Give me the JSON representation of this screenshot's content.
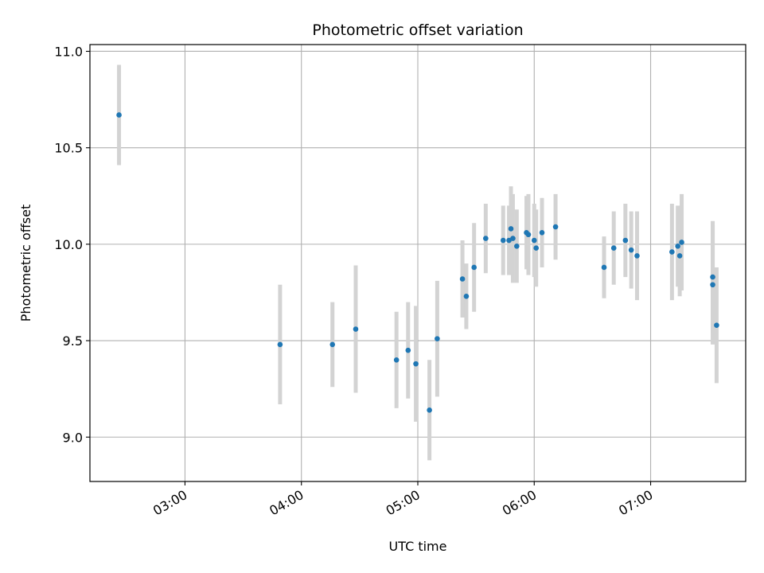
{
  "chart_data": {
    "type": "scatter",
    "title": "Photometric offset variation",
    "xlabel": "UTC time",
    "ylabel": "Photometric offset",
    "x_unit": "UTC time (HH:MM)",
    "xlim": [
      "02:11",
      "07:49"
    ],
    "ylim": [
      8.77,
      11.035
    ],
    "x_ticks": [
      "03:00",
      "04:00",
      "05:00",
      "06:00",
      "07:00"
    ],
    "y_ticks": [
      9.0,
      9.5,
      10.0,
      10.5,
      11.0
    ],
    "y_tick_labels": [
      "9.0",
      "9.5",
      "10.0",
      "10.5",
      "11.0"
    ],
    "grid": true,
    "legend": "none",
    "series": [
      {
        "marker_color": "#1f77b4",
        "errorbar_color": "#d3d3d3",
        "points": [
          {
            "x": "02:26",
            "y": 10.67,
            "err": 0.26
          },
          {
            "x": "03:49",
            "y": 9.48,
            "err": 0.31
          },
          {
            "x": "04:16",
            "y": 9.48,
            "err": 0.22
          },
          {
            "x": "04:28",
            "y": 9.56,
            "err": 0.33
          },
          {
            "x": "04:49",
            "y": 9.4,
            "err": 0.25
          },
          {
            "x": "04:55",
            "y": 9.45,
            "err": 0.25
          },
          {
            "x": "04:59",
            "y": 9.38,
            "err": 0.3
          },
          {
            "x": "05:06",
            "y": 9.14,
            "err": 0.26
          },
          {
            "x": "05:10",
            "y": 9.51,
            "err": 0.3
          },
          {
            "x": "05:23",
            "y": 9.82,
            "err": 0.2
          },
          {
            "x": "05:25",
            "y": 9.73,
            "err": 0.17
          },
          {
            "x": "05:29",
            "y": 9.88,
            "err": 0.23
          },
          {
            "x": "05:35",
            "y": 10.03,
            "err": 0.18
          },
          {
            "x": "05:44",
            "y": 10.02,
            "err": 0.18
          },
          {
            "x": "05:47",
            "y": 10.02,
            "err": 0.18
          },
          {
            "x": "05:48",
            "y": 10.08,
            "err": 0.22
          },
          {
            "x": "05:49",
            "y": 10.03,
            "err": 0.23
          },
          {
            "x": "05:51",
            "y": 9.99,
            "err": 0.19
          },
          {
            "x": "05:56",
            "y": 10.06,
            "err": 0.19
          },
          {
            "x": "05:57",
            "y": 10.05,
            "err": 0.21
          },
          {
            "x": "06:00",
            "y": 10.02,
            "err": 0.19
          },
          {
            "x": "06:01",
            "y": 9.98,
            "err": 0.2
          },
          {
            "x": "06:04",
            "y": 10.06,
            "err": 0.18
          },
          {
            "x": "06:11",
            "y": 10.09,
            "err": 0.17
          },
          {
            "x": "06:36",
            "y": 9.88,
            "err": 0.16
          },
          {
            "x": "06:41",
            "y": 9.98,
            "err": 0.19
          },
          {
            "x": "06:47",
            "y": 10.02,
            "err": 0.19
          },
          {
            "x": "06:50",
            "y": 9.97,
            "err": 0.2
          },
          {
            "x": "06:53",
            "y": 9.94,
            "err": 0.23
          },
          {
            "x": "07:11",
            "y": 9.96,
            "err": 0.25
          },
          {
            "x": "07:14",
            "y": 9.99,
            "err": 0.21
          },
          {
            "x": "07:15",
            "y": 9.94,
            "err": 0.21
          },
          {
            "x": "07:16",
            "y": 10.01,
            "err": 0.25
          },
          {
            "x": "07:32",
            "y": 9.83,
            "err": 0.29
          },
          {
            "x": "07:32",
            "y": 9.79,
            "err": 0.31
          },
          {
            "x": "07:34",
            "y": 9.58,
            "err": 0.3
          }
        ]
      }
    ]
  }
}
